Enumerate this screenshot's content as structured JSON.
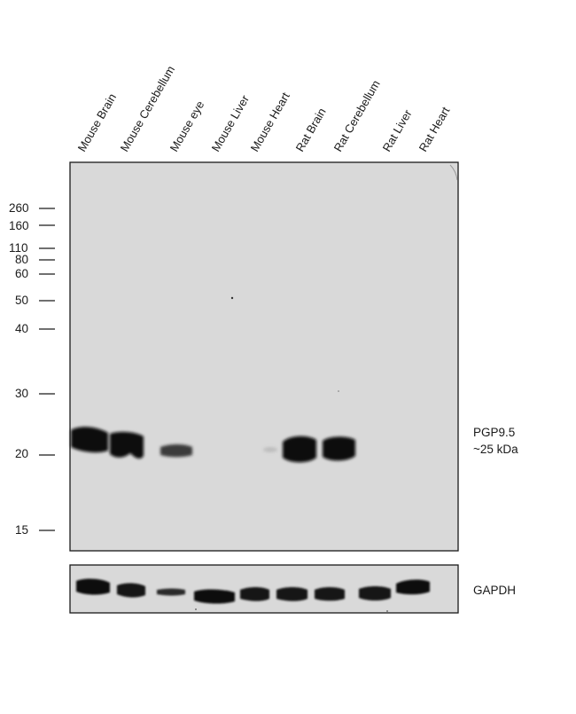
{
  "lanes": [
    "Mouse Brain",
    "Mouse Cerebellum",
    "Mouse eye",
    "Mouse Liver",
    "Mouse Heart",
    "Rat Brain",
    "Rat Cerebellum",
    "Rat Liver",
    "Rat Heart"
  ],
  "markers": [
    "260",
    "160",
    "110",
    "80",
    "60",
    "50",
    "40",
    "30",
    "20",
    "15"
  ],
  "main_blot": {
    "target_label_line1": "PGP9.5",
    "target_label_line2": "~25 kDa",
    "band_intensity": [
      1.0,
      0.95,
      0.45,
      0.0,
      0.06,
      0.95,
      0.9,
      0.0,
      0.0
    ]
  },
  "control_blot": {
    "label": "GAPDH",
    "band_intensity": [
      0.9,
      0.85,
      0.6,
      0.95,
      0.85,
      0.85,
      0.8,
      0.85,
      0.9
    ]
  },
  "colors": {
    "membrane": "#d9d9d9",
    "band": "#0d0d0d",
    "border": "#1a1a1a"
  }
}
